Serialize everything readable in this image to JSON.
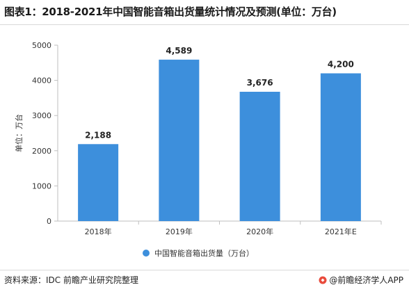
{
  "title": "图表1：2018-2021年中国智能音箱出货量统计情况及预测(单位：万台)",
  "source": "资料来源：IDC 前瞻产业研究院整理",
  "brand": "@前瞻经济学人APP",
  "colors": {
    "bar": "#3d8fdc",
    "axis": "#bfbfbf",
    "text": "#333333",
    "label": "#222222"
  },
  "chart_data": {
    "type": "bar",
    "title": "图表1：2018-2021年中国智能音箱出货量统计情况及预测(单位：万台)",
    "categories": [
      "2018年",
      "2019年",
      "2020年",
      "2021年E"
    ],
    "series": [
      {
        "name": "中国智能音箱出货量（万台）",
        "values": [
          2188,
          4589,
          3676,
          4200
        ]
      }
    ],
    "data_labels": [
      "2,188",
      "4,589",
      "3,676",
      "4,200"
    ],
    "ylabel": "单位：万台",
    "xlabel": "",
    "ylim": [
      0,
      5000
    ],
    "yticks": [
      0,
      1000,
      2000,
      3000,
      4000,
      5000
    ],
    "grid": false,
    "legend_position": "bottom"
  }
}
